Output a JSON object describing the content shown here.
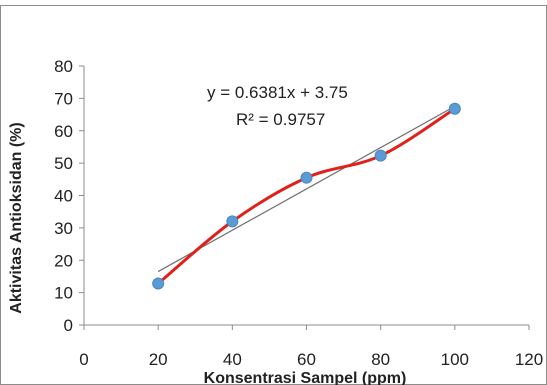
{
  "chart_data": {
    "type": "scatter",
    "title": "",
    "xlabel": "Konsentrasi Sampel (ppm)",
    "ylabel": "Aktivitas Antioksidan (%)",
    "xlim": [
      0,
      120
    ],
    "ylim": [
      0,
      80
    ],
    "x_ticks": [
      0,
      20,
      40,
      60,
      80,
      100,
      120
    ],
    "y_ticks": [
      0,
      10,
      20,
      30,
      40,
      50,
      60,
      70,
      80
    ],
    "grid": false,
    "legend": "none",
    "series": [
      {
        "x": [
          20,
          40,
          60,
          80,
          100
        ],
        "y": [
          12.8,
          32.0,
          45.5,
          52.3,
          66.8
        ],
        "marker_color": "#5b9bd5",
        "smooth_line_color": "#e0201b"
      }
    ],
    "trendline": {
      "type": "linear",
      "slope": 0.6381,
      "intercept": 3.75,
      "color": "#6e6e6e"
    },
    "annotations": {
      "equation": "y = 0.6381x + 3.75",
      "r_squared": "R² = 0.9757"
    }
  }
}
